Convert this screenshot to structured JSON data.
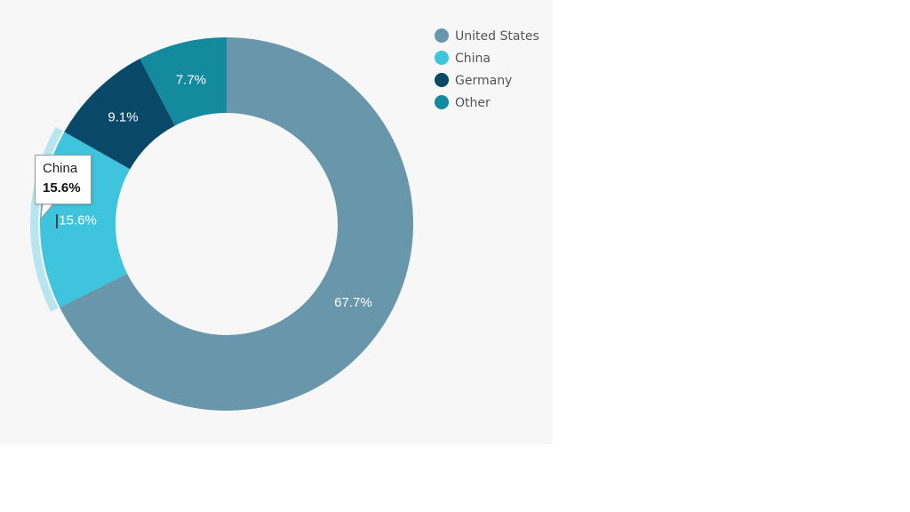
{
  "chart_data": {
    "type": "pie",
    "variant": "donut",
    "title": "",
    "categories": [
      "United States",
      "China",
      "Germany",
      "Other"
    ],
    "values": [
      67.7,
      15.6,
      9.1,
      7.7
    ],
    "labels": [
      "67.7%",
      "15.6%",
      "9.1%",
      "7.7%"
    ],
    "colors": [
      "#6896ab",
      "#3ec5dd",
      "#0a4868",
      "#138a9e"
    ],
    "legend": {
      "position": "top-right",
      "items": [
        {
          "label": "United States",
          "color": "#6896ab"
        },
        {
          "label": "China",
          "color": "#3ec5dd"
        },
        {
          "label": "Germany",
          "color": "#0a4868"
        },
        {
          "label": "Other",
          "color": "#138a9e"
        }
      ]
    },
    "highlighted": "China"
  },
  "tooltip": {
    "name": "China",
    "value": "15.6%"
  }
}
